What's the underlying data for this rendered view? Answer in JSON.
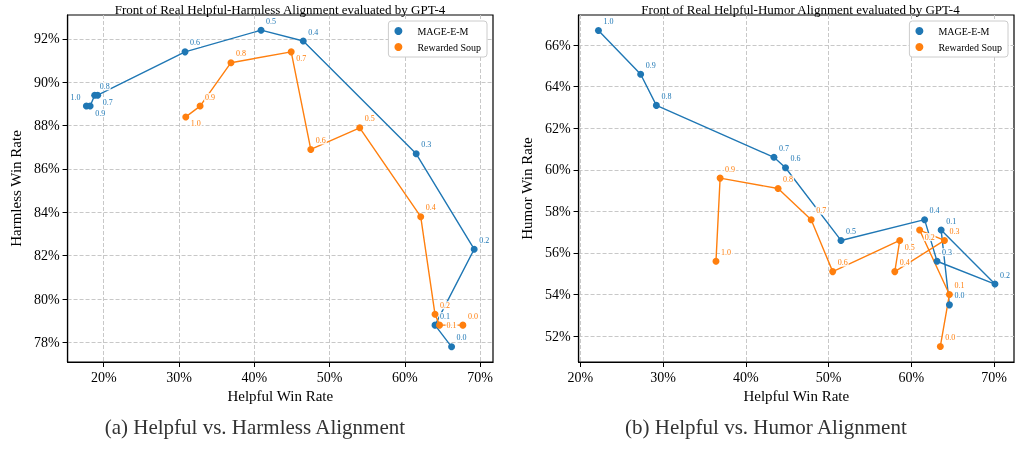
{
  "chart_data": [
    {
      "type": "line",
      "title": "Front of Real Helpful-Harmless Alignment evaluated by GPT-4",
      "xlabel": "Helpful Win Rate",
      "ylabel": "Harmless Win Rate",
      "xlim": [
        15.2,
        71.7
      ],
      "xticks": [
        {
          "value": 20,
          "label": "20%"
        },
        {
          "value": 30,
          "label": "30%"
        },
        {
          "value": 40,
          "label": "40%"
        },
        {
          "value": 50,
          "label": "50%"
        },
        {
          "value": 60,
          "label": "60%"
        },
        {
          "value": 70,
          "label": "70%"
        }
      ],
      "ylim": [
        77.1,
        93.1
      ],
      "yticks": [
        {
          "value": 78,
          "label": "78%"
        },
        {
          "value": 80,
          "label": "80%"
        },
        {
          "value": 82,
          "label": "82%"
        },
        {
          "value": 84,
          "label": "84%"
        },
        {
          "value": 86,
          "label": "86%"
        },
        {
          "value": 88,
          "label": "88%"
        },
        {
          "value": 90,
          "label": "90%"
        },
        {
          "value": 92,
          "label": "92%"
        }
      ],
      "grid": true,
      "legend": "top right",
      "marker": "circle",
      "line_style": "solid",
      "series": [
        {
          "name": "MAGE-E-M",
          "color": "#1f77b4",
          "x": [
            17.7,
            18.2,
            18.8,
            19.2,
            30.8,
            40.9,
            46.5,
            61.5,
            69.2,
            64.0,
            66.2
          ],
          "values": [
            88.9,
            88.9,
            89.4,
            89.4,
            91.4,
            92.4,
            91.9,
            86.7,
            82.3,
            78.8,
            77.8
          ]
        },
        {
          "name": "Rewarded Soup",
          "color": "#ff7f0e",
          "x": [
            30.9,
            32.8,
            36.9,
            44.9,
            47.5,
            54.0,
            62.1,
            64.0,
            64.6,
            67.7
          ],
          "values": [
            88.4,
            88.9,
            90.9,
            91.4,
            86.9,
            87.9,
            83.8,
            79.3,
            78.8,
            78.8
          ]
        }
      ],
      "annotations": [
        {
          "text": "1.0",
          "x": 17.7,
          "y": 88.9
        },
        {
          "text": "0.9",
          "x": 18.2,
          "y": 88.9
        },
        {
          "text": "0.8",
          "x": 18.8,
          "y": 89.4
        },
        {
          "text": "0.7",
          "x": 19.2,
          "y": 89.4
        },
        {
          "text": "0.6",
          "x": 30.8,
          "y": 91.4
        },
        {
          "text": "0.5",
          "x": 40.9,
          "y": 92.4
        },
        {
          "text": "0.4",
          "x": 46.5,
          "y": 91.9
        },
        {
          "text": "0.3",
          "x": 61.5,
          "y": 86.7
        },
        {
          "text": "0.2",
          "x": 69.2,
          "y": 82.3
        },
        {
          "text": "0.1",
          "x": 64.0,
          "y": 78.8
        },
        {
          "text": "0.0",
          "x": 66.2,
          "y": 77.8
        },
        {
          "text": "1.0",
          "x": 30.9,
          "y": 88.4
        },
        {
          "text": "0.9",
          "x": 32.8,
          "y": 88.9
        },
        {
          "text": "0.8",
          "x": 36.9,
          "y": 90.9
        },
        {
          "text": "0.7",
          "x": 44.9,
          "y": 91.4
        },
        {
          "text": "0.6",
          "x": 47.5,
          "y": 86.9
        },
        {
          "text": "0.5",
          "x": 54.0,
          "y": 87.9
        },
        {
          "text": "0.4",
          "x": 62.1,
          "y": 83.8
        },
        {
          "text": "0.2",
          "x": 64.0,
          "y": 79.3
        },
        {
          "text": "0.1",
          "x": 64.6,
          "y": 78.8
        },
        {
          "text": "0.0",
          "x": 67.7,
          "y": 78.8
        },
        "(a) Helpful vs. Harmless Alignment"
      ]
    },
    {
      "type": "line",
      "title": "Front of Real Helpful-Humor Alignment evaluated by GPT-4",
      "xlabel": "Helpful Win Rate",
      "ylabel": "Humor Win Rate",
      "xlim": [
        19.8,
        72.4
      ],
      "xticks": [
        {
          "value": 20,
          "label": "20%"
        },
        {
          "value": 30,
          "label": "30%"
        },
        {
          "value": 40,
          "label": "40%"
        },
        {
          "value": 50,
          "label": "50%"
        },
        {
          "value": 60,
          "label": "60%"
        },
        {
          "value": 70,
          "label": "70%"
        }
      ],
      "ylim": [
        50.75,
        67.45
      ],
      "yticks": [
        {
          "value": 52,
          "label": "52%"
        },
        {
          "value": 54,
          "label": "54%"
        },
        {
          "value": 56,
          "label": "56%"
        },
        {
          "value": 58,
          "label": "58%"
        },
        {
          "value": 60,
          "label": "60%"
        },
        {
          "value": 62,
          "label": "62%"
        },
        {
          "value": 64,
          "label": "64%"
        },
        {
          "value": 66,
          "label": "66%"
        }
      ],
      "grid": true,
      "legend": "top right",
      "marker": "circle",
      "line_style": "solid",
      "series": [
        {
          "name": "MAGE-E-M",
          "color": "#1f77b4",
          "x": [
            22.2,
            27.3,
            29.2,
            43.4,
            44.8,
            51.5,
            61.6,
            63.1,
            70.1,
            63.6,
            64.6
          ],
          "values": [
            66.7,
            64.6,
            63.1,
            60.6,
            60.1,
            56.6,
            57.6,
            55.6,
            54.5,
            57.1,
            53.5
          ]
        },
        {
          "name": "Rewarded Soup",
          "color": "#ff7f0e",
          "x": [
            36.4,
            36.9,
            43.9,
            47.9,
            50.5,
            58.6,
            58.0,
            64.0,
            61.0,
            64.6,
            63.5
          ],
          "values": [
            55.6,
            59.6,
            59.1,
            57.6,
            55.1,
            56.6,
            55.1,
            56.6,
            57.1,
            54.0,
            51.5
          ]
        }
      ],
      "annotations": [
        {
          "text": "1.0",
          "x": 22.2,
          "y": 66.7
        },
        {
          "text": "0.9",
          "x": 27.3,
          "y": 64.6
        },
        {
          "text": "0.8",
          "x": 29.2,
          "y": 63.1
        },
        {
          "text": "0.7",
          "x": 43.4,
          "y": 60.6
        },
        {
          "text": "0.6",
          "x": 44.8,
          "y": 60.1
        },
        {
          "text": "0.5",
          "x": 51.5,
          "y": 56.6
        },
        {
          "text": "0.4",
          "x": 61.6,
          "y": 57.6
        },
        {
          "text": "0.3",
          "x": 63.1,
          "y": 55.6
        },
        {
          "text": "0.2",
          "x": 70.1,
          "y": 54.5
        },
        {
          "text": "0.1",
          "x": 63.6,
          "y": 57.1
        },
        {
          "text": "0.0",
          "x": 64.6,
          "y": 53.5
        },
        {
          "text": "1.0",
          "x": 36.4,
          "y": 55.6
        },
        {
          "text": "0.9",
          "x": 36.9,
          "y": 59.6
        },
        {
          "text": "0.8",
          "x": 43.9,
          "y": 59.1
        },
        {
          "text": "0.7",
          "x": 47.9,
          "y": 57.6
        },
        {
          "text": "0.6",
          "x": 50.5,
          "y": 55.1
        },
        {
          "text": "0.5",
          "x": 58.6,
          "y": 56.6
        },
        {
          "text": "0.4",
          "x": 58.0,
          "y": 55.1
        },
        {
          "text": "0.3",
          "x": 64.0,
          "y": 56.6
        },
        {
          "text": "0.2",
          "x": 61.0,
          "y": 57.1
        },
        {
          "text": "0.1",
          "x": 64.6,
          "y": 54.0
        },
        {
          "text": "0.0",
          "x": 63.5,
          "y": 51.5
        },
        "(b) Helpful vs. Humor Alignment"
      ]
    }
  ]
}
